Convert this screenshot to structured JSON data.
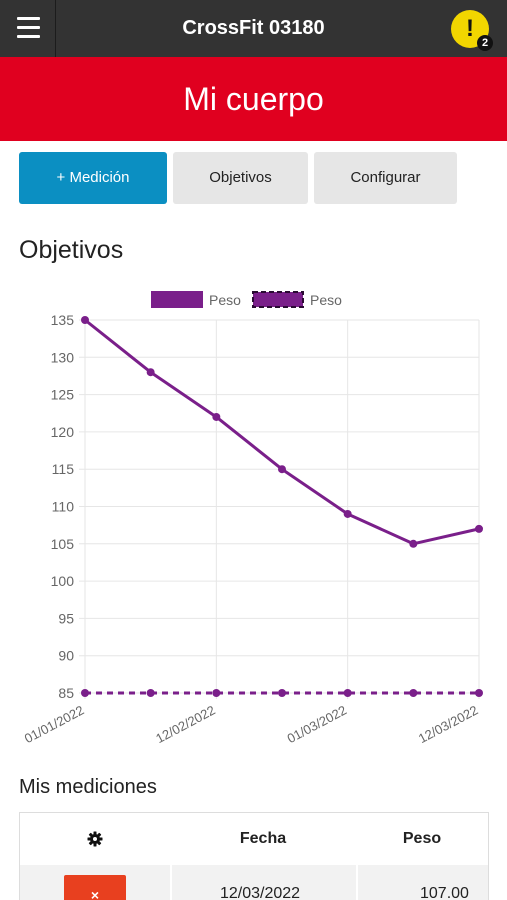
{
  "header": {
    "title": "CrossFit 03180",
    "menu_icon": "hamburger-menu-icon",
    "alert_icon": "exclamation-icon",
    "alert_mark": "!",
    "alert_count": "2"
  },
  "banner": {
    "title": "Mi cuerpo"
  },
  "actions": {
    "add_measurement": "+ Medición",
    "objectives": "Objetivos",
    "configure": "Configurar"
  },
  "objectives_section": {
    "title": "Objetivos"
  },
  "chart_data": {
    "type": "line",
    "x": [
      "01/01/2022",
      "",
      "12/02/2022",
      "",
      "01/03/2022",
      "",
      "12/03/2022"
    ],
    "series": [
      {
        "name": "Peso",
        "style": "solid",
        "values": [
          135,
          128,
          122,
          115,
          109,
          105,
          107
        ]
      },
      {
        "name": "Peso",
        "style": "dashed",
        "values": [
          85,
          85,
          85,
          85,
          85,
          85,
          85
        ]
      }
    ],
    "yticks": [
      135,
      130,
      125,
      120,
      115,
      110,
      105,
      100,
      95,
      90,
      85
    ],
    "ylim": [
      85,
      135
    ],
    "grid": true,
    "legend": "top",
    "colors": {
      "line": "#7a1f8a",
      "grid": "#e6e6e6",
      "axis_text": "#666666"
    }
  },
  "measurements": {
    "title": "Mis mediciones",
    "columns": {
      "settings_icon": "gear-icon",
      "date": "Fecha",
      "weight": "Peso"
    },
    "rows": [
      {
        "delete_label": "×",
        "date": "12/03/2022",
        "weight": "107.00"
      }
    ]
  },
  "colors": {
    "topbar": "#333333",
    "banner": "#e0001f",
    "primary": "#0b8fc2",
    "secondary": "#e6e6e6",
    "alert": "#f2d600",
    "danger": "#e8401f"
  }
}
